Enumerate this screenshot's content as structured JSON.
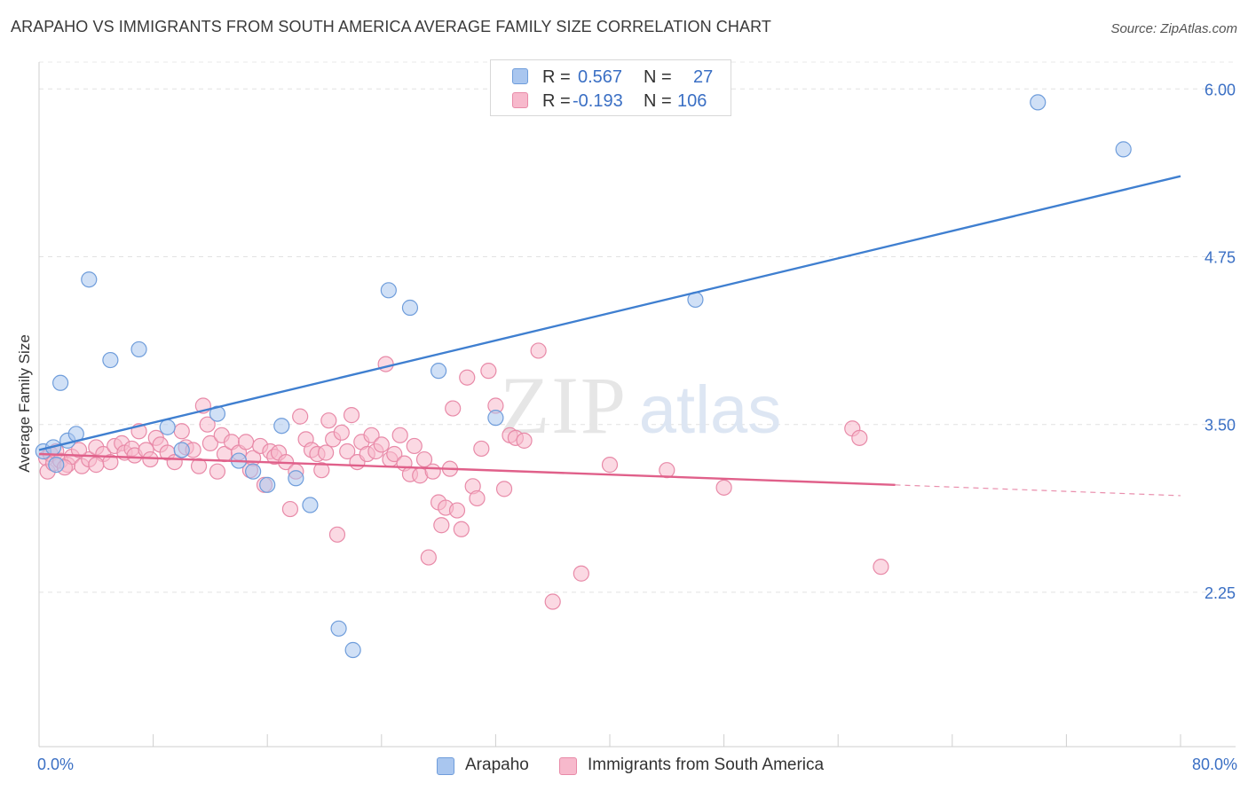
{
  "title": "ARAPAHO VS IMMIGRANTS FROM SOUTH AMERICA AVERAGE FAMILY SIZE CORRELATION CHART",
  "source": "Source: ZipAtlas.com",
  "watermark": {
    "zip": "ZIP",
    "atlas": "atlas"
  },
  "legend": {
    "rows": [
      {
        "r_label": "R =",
        "r_value": "0.567",
        "n_label": "N =",
        "n_value": "27",
        "color": "#a9c6ef",
        "stroke": "#6f9ddb"
      },
      {
        "r_label": "R =",
        "r_value": "-0.193",
        "n_label": "N =",
        "n_value": "106",
        "color": "#f7b9cc",
        "stroke": "#e88aa8"
      }
    ]
  },
  "bottom_legend": [
    {
      "label": "Arapaho",
      "color": "#a9c6ef",
      "stroke": "#6f9ddb"
    },
    {
      "label": "Immigrants from South America",
      "color": "#f7b9cc",
      "stroke": "#e88aa8"
    }
  ],
  "chart_data": {
    "type": "scatter",
    "title": "ARAPAHO VS IMMIGRANTS FROM SOUTH AMERICA AVERAGE FAMILY SIZE CORRELATION CHART",
    "xlabel": "",
    "ylabel": "Average Family Size",
    "xlim": [
      0,
      80
    ],
    "ylim": [
      1.1,
      6.2
    ],
    "x_tick_labels": [
      "0.0%",
      "80.0%"
    ],
    "y_ticks": [
      2.25,
      3.5,
      4.75,
      6.0
    ],
    "y_tick_labels": [
      "2.25",
      "3.50",
      "4.75",
      "6.00"
    ],
    "grid": true,
    "legend_position": "top-center",
    "series": [
      {
        "name": "Arapaho",
        "color": "#6f9ddb",
        "fill": "#a9c6ef",
        "line_color": "#3f7fd0",
        "trend": {
          "x0": 0,
          "y0": 3.31,
          "x1": 80,
          "y1": 5.35
        },
        "points": [
          [
            0.3,
            3.3
          ],
          [
            1.0,
            3.33
          ],
          [
            1.2,
            3.2
          ],
          [
            1.5,
            3.81
          ],
          [
            2.0,
            3.38
          ],
          [
            2.6,
            3.43
          ],
          [
            3.5,
            4.58
          ],
          [
            5.0,
            3.98
          ],
          [
            7.0,
            4.06
          ],
          [
            9.0,
            3.48
          ],
          [
            10.0,
            3.31
          ],
          [
            12.5,
            3.58
          ],
          [
            14.0,
            3.23
          ],
          [
            15.0,
            3.15
          ],
          [
            16.0,
            3.05
          ],
          [
            17.0,
            3.49
          ],
          [
            18.0,
            3.1
          ],
          [
            19.0,
            2.9
          ],
          [
            21.0,
            1.98
          ],
          [
            22.0,
            1.82
          ],
          [
            24.5,
            4.5
          ],
          [
            26.0,
            4.37
          ],
          [
            28.0,
            3.9
          ],
          [
            32.0,
            3.55
          ],
          [
            46.0,
            4.43
          ],
          [
            70.0,
            5.9
          ],
          [
            76.0,
            5.55
          ]
        ]
      },
      {
        "name": "Immigrants from South America",
        "color": "#e88aa8",
        "fill": "#f7b9cc",
        "line_color": "#e0608a",
        "trend": {
          "x0": 0,
          "y0": 3.28,
          "x1": 60,
          "y1": 3.05
        },
        "trend_dashed": {
          "x0": 60,
          "y0": 3.05,
          "x1": 80,
          "y1": 2.97
        },
        "points": [
          [
            0.5,
            3.25
          ],
          [
            0.6,
            3.15
          ],
          [
            0.8,
            3.28
          ],
          [
            1.0,
            3.21
          ],
          [
            1.2,
            3.3
          ],
          [
            1.5,
            3.23
          ],
          [
            2.0,
            3.2
          ],
          [
            2.3,
            3.26
          ],
          [
            3.0,
            3.19
          ],
          [
            3.5,
            3.24
          ],
          [
            4.0,
            3.33
          ],
          [
            4.5,
            3.28
          ],
          [
            5.0,
            3.22
          ],
          [
            5.3,
            3.34
          ],
          [
            5.8,
            3.36
          ],
          [
            6.0,
            3.29
          ],
          [
            6.5,
            3.32
          ],
          [
            6.7,
            3.27
          ],
          [
            7.0,
            3.45
          ],
          [
            7.5,
            3.31
          ],
          [
            7.8,
            3.24
          ],
          [
            8.2,
            3.4
          ],
          [
            8.5,
            3.35
          ],
          [
            9.0,
            3.29
          ],
          [
            9.5,
            3.22
          ],
          [
            10.0,
            3.45
          ],
          [
            10.3,
            3.33
          ],
          [
            10.8,
            3.31
          ],
          [
            11.2,
            3.19
          ],
          [
            11.5,
            3.64
          ],
          [
            11.8,
            3.5
          ],
          [
            12.0,
            3.36
          ],
          [
            12.5,
            3.15
          ],
          [
            12.8,
            3.42
          ],
          [
            13.0,
            3.28
          ],
          [
            13.5,
            3.37
          ],
          [
            14.0,
            3.29
          ],
          [
            14.5,
            3.37
          ],
          [
            14.8,
            3.16
          ],
          [
            15.0,
            3.25
          ],
          [
            15.5,
            3.34
          ],
          [
            15.8,
            3.05
          ],
          [
            16.2,
            3.3
          ],
          [
            16.5,
            3.26
          ],
          [
            16.8,
            3.29
          ],
          [
            17.3,
            3.22
          ],
          [
            17.6,
            2.87
          ],
          [
            18.0,
            3.15
          ],
          [
            18.3,
            3.56
          ],
          [
            18.7,
            3.39
          ],
          [
            19.1,
            3.31
          ],
          [
            19.5,
            3.28
          ],
          [
            19.8,
            3.16
          ],
          [
            20.1,
            3.29
          ],
          [
            20.3,
            3.53
          ],
          [
            20.6,
            3.39
          ],
          [
            20.9,
            2.68
          ],
          [
            21.2,
            3.44
          ],
          [
            21.6,
            3.3
          ],
          [
            21.9,
            3.57
          ],
          [
            22.3,
            3.22
          ],
          [
            22.6,
            3.37
          ],
          [
            23.0,
            3.28
          ],
          [
            23.3,
            3.42
          ],
          [
            23.6,
            3.3
          ],
          [
            24.0,
            3.35
          ],
          [
            24.3,
            3.95
          ],
          [
            24.6,
            3.24
          ],
          [
            24.9,
            3.28
          ],
          [
            25.3,
            3.42
          ],
          [
            25.6,
            3.21
          ],
          [
            26.0,
            3.13
          ],
          [
            26.3,
            3.34
          ],
          [
            26.7,
            3.12
          ],
          [
            27.0,
            3.24
          ],
          [
            27.3,
            2.51
          ],
          [
            27.6,
            3.15
          ],
          [
            28.0,
            2.92
          ],
          [
            28.2,
            2.75
          ],
          [
            28.5,
            2.88
          ],
          [
            28.8,
            3.17
          ],
          [
            29.0,
            3.62
          ],
          [
            29.3,
            2.86
          ],
          [
            29.6,
            2.72
          ],
          [
            30.0,
            3.85
          ],
          [
            30.4,
            3.04
          ],
          [
            30.7,
            2.95
          ],
          [
            31.0,
            3.32
          ],
          [
            31.5,
            3.9
          ],
          [
            32.0,
            3.64
          ],
          [
            32.6,
            3.02
          ],
          [
            33.0,
            3.42
          ],
          [
            33.4,
            3.4
          ],
          [
            34.0,
            3.38
          ],
          [
            35.0,
            4.05
          ],
          [
            36.0,
            2.18
          ],
          [
            38.0,
            2.39
          ],
          [
            40.0,
            3.2
          ],
          [
            44.0,
            3.16
          ],
          [
            48.0,
            3.03
          ],
          [
            57.0,
            3.47
          ],
          [
            57.5,
            3.4
          ],
          [
            59.0,
            2.44
          ],
          [
            4.0,
            3.2
          ],
          [
            2.8,
            3.31
          ],
          [
            1.8,
            3.18
          ]
        ]
      }
    ]
  }
}
